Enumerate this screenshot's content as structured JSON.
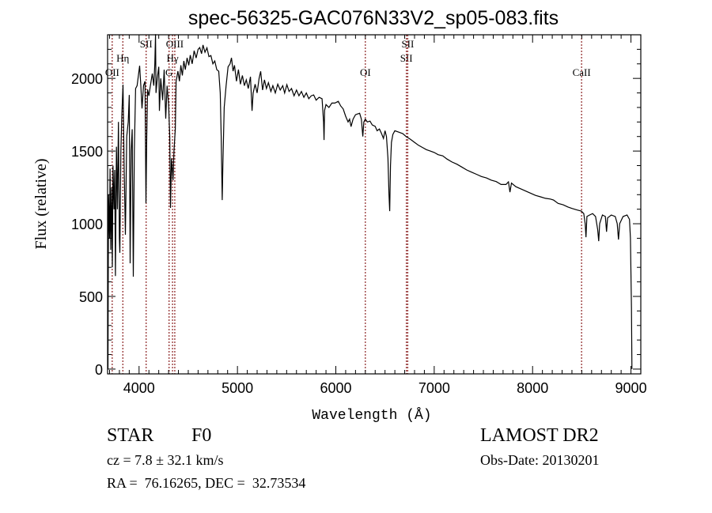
{
  "chart_data": {
    "type": "line",
    "title": "spec-56325-GAC076N33V2_sp05-083.fits",
    "xlabel": "Wavelength (Å)",
    "ylabel": "Flux (relative)",
    "xlim": [
      3680,
      9100
    ],
    "ylim": [
      -33,
      2300
    ],
    "xticks": [
      4000,
      5000,
      6000,
      7000,
      8000,
      9000
    ],
    "yticks": [
      0,
      500,
      1000,
      1500,
      2000
    ],
    "grid": false,
    "line_color": "#000000",
    "marker_color": "#8b2020",
    "lines": [
      {
        "label": "OII",
        "wavelength": 3727
      },
      {
        "label": "Hη",
        "wavelength": 3835
      },
      {
        "label": "SII",
        "wavelength": 4072
      },
      {
        "label": "G",
        "wavelength": 4305
      },
      {
        "label": "Hγ",
        "wavelength": 4340
      },
      {
        "label": "OIII",
        "wavelength": 4363
      },
      {
        "label": "OI",
        "wavelength": 6300
      },
      {
        "label": "SII",
        "wavelength": 6717
      },
      {
        "label": "SII",
        "wavelength": 6731
      },
      {
        "label": "CaII",
        "wavelength": 8498
      }
    ],
    "series": [
      {
        "name": "flux",
        "points": [
          [
            3684,
            0
          ],
          [
            3686,
            380
          ],
          [
            3690,
            1200
          ],
          [
            3700,
            900
          ],
          [
            3705,
            1380
          ],
          [
            3712,
            820
          ],
          [
            3720,
            1250
          ],
          [
            3728,
            700
          ],
          [
            3735,
            1400
          ],
          [
            3745,
            1100
          ],
          [
            3752,
            1370
          ],
          [
            3760,
            640
          ],
          [
            3770,
            1530
          ],
          [
            3780,
            1100
          ],
          [
            3790,
            1700
          ],
          [
            3800,
            900
          ],
          [
            3805,
            800
          ],
          [
            3815,
            1500
          ],
          [
            3825,
            1750
          ],
          [
            3837,
            1957
          ],
          [
            3848,
            1400
          ],
          [
            3861,
            924
          ],
          [
            3875,
            1600
          ],
          [
            3890,
            1700
          ],
          [
            3900,
            1886
          ],
          [
            3909,
            728
          ],
          [
            3920,
            1500
          ],
          [
            3930,
            1650
          ],
          [
            3941,
            636
          ],
          [
            3952,
            1500
          ],
          [
            3965,
            1930
          ],
          [
            3980,
            1950
          ],
          [
            4006,
            2087
          ],
          [
            4018,
            1950
          ],
          [
            4030,
            1793
          ],
          [
            4045,
            1950
          ],
          [
            4060,
            1980
          ],
          [
            4070,
            1141
          ],
          [
            4078,
            1600
          ],
          [
            4086,
            1924
          ],
          [
            4100,
            1880
          ],
          [
            4115,
            1950
          ],
          [
            4134,
            2033
          ],
          [
            4150,
            1950
          ],
          [
            4160,
            2100
          ],
          [
            4167,
            2304
          ],
          [
            4172,
            1900
          ],
          [
            4185,
            2000
          ],
          [
            4200,
            2080
          ],
          [
            4207,
            1777
          ],
          [
            4220,
            2000
          ],
          [
            4240,
            1850
          ],
          [
            4255,
            2060
          ],
          [
            4271,
            1723
          ],
          [
            4285,
            1950
          ],
          [
            4300,
            1820
          ],
          [
            4312,
            1600
          ],
          [
            4319,
            1109
          ],
          [
            4330,
            1450
          ],
          [
            4345,
            1300
          ],
          [
            4355,
            1500
          ],
          [
            4368,
            1652
          ],
          [
            4376,
            1978
          ],
          [
            4395,
            2050
          ],
          [
            4410,
            1980
          ],
          [
            4425,
            2090
          ],
          [
            4440,
            2020
          ],
          [
            4455,
            2120
          ],
          [
            4470,
            2060
          ],
          [
            4488,
            2141
          ],
          [
            4505,
            2090
          ],
          [
            4520,
            2160
          ],
          [
            4540,
            2100
          ],
          [
            4560,
            2190
          ],
          [
            4580,
            2140
          ],
          [
            4600,
            2200
          ],
          [
            4617,
            2212
          ],
          [
            4635,
            2170
          ],
          [
            4650,
            2230
          ],
          [
            4670,
            2180
          ],
          [
            4690,
            2210
          ],
          [
            4710,
            2150
          ],
          [
            4730,
            2157
          ],
          [
            4750,
            2100
          ],
          [
            4770,
            2120
          ],
          [
            4790,
            2060
          ],
          [
            4810,
            2049
          ],
          [
            4825,
            1900
          ],
          [
            4835,
            1600
          ],
          [
            4845,
            1163
          ],
          [
            4852,
            1400
          ],
          [
            4865,
            1800
          ],
          [
            4885,
            1950
          ],
          [
            4905,
            2080
          ],
          [
            4925,
            2100
          ],
          [
            4939,
            2141
          ],
          [
            4955,
            2050
          ],
          [
            4970,
            2090
          ],
          [
            4990,
            1980
          ],
          [
            5010,
            2060
          ],
          [
            5030,
            1960
          ],
          [
            5050,
            2020
          ],
          [
            5070,
            1950
          ],
          [
            5090,
            1990
          ],
          [
            5110,
            1930
          ],
          [
            5132,
            2011
          ],
          [
            5148,
            1777
          ],
          [
            5160,
            1900
          ],
          [
            5180,
            1960
          ],
          [
            5200,
            1900
          ],
          [
            5220,
            2000
          ],
          [
            5236,
            2049
          ],
          [
            5255,
            1920
          ],
          [
            5275,
            1990
          ],
          [
            5295,
            1930
          ],
          [
            5315,
            1970
          ],
          [
            5340,
            1910
          ],
          [
            5360,
            1950
          ],
          [
            5385,
            1900
          ],
          [
            5410,
            1960
          ],
          [
            5435,
            1920
          ],
          [
            5460,
            1950
          ],
          [
            5480,
            1900
          ],
          [
            5502,
            1957
          ],
          [
            5525,
            1910
          ],
          [
            5550,
            1930
          ],
          [
            5575,
            1880
          ],
          [
            5600,
            1920
          ],
          [
            5625,
            1880
          ],
          [
            5650,
            1910
          ],
          [
            5675,
            1870
          ],
          [
            5700,
            1900
          ],
          [
            5725,
            1860
          ],
          [
            5750,
            1880
          ],
          [
            5775,
            1886
          ],
          [
            5800,
            1850
          ],
          [
            5830,
            1870
          ],
          [
            5860,
            1860
          ],
          [
            5875,
            1700
          ],
          [
            5880,
            1576
          ],
          [
            5886,
            1780
          ],
          [
            5900,
            1820
          ],
          [
            5930,
            1800
          ],
          [
            5960,
            1830
          ],
          [
            5990,
            1830
          ],
          [
            6025,
            1842
          ],
          [
            6050,
            1810
          ],
          [
            6075,
            1790
          ],
          [
            6100,
            1740
          ],
          [
            6125,
            1700
          ],
          [
            6140,
            1720
          ],
          [
            6154,
            1668
          ],
          [
            6175,
            1720
          ],
          [
            6200,
            1750
          ],
          [
            6220,
            1755
          ],
          [
            6242,
            1760
          ],
          [
            6260,
            1720
          ],
          [
            6274,
            1600
          ],
          [
            6285,
            1700
          ],
          [
            6300,
            1720
          ],
          [
            6320,
            1700
          ],
          [
            6347,
            1706
          ],
          [
            6370,
            1680
          ],
          [
            6400,
            1670
          ],
          [
            6420,
            1640
          ],
          [
            6443,
            1652
          ],
          [
            6465,
            1620
          ],
          [
            6484,
            1587
          ],
          [
            6500,
            1640
          ],
          [
            6515,
            1600
          ],
          [
            6530,
            1450
          ],
          [
            6540,
            1200
          ],
          [
            6548,
            1087
          ],
          [
            6556,
            1400
          ],
          [
            6565,
            1560
          ],
          [
            6580,
            1614
          ],
          [
            6600,
            1640
          ],
          [
            6640,
            1630
          ],
          [
            6680,
            1620
          ],
          [
            6709,
            1603
          ],
          [
            6760,
            1580
          ],
          [
            6800,
            1560
          ],
          [
            6840,
            1540
          ],
          [
            6880,
            1525
          ],
          [
            6920,
            1510
          ],
          [
            6960,
            1500
          ],
          [
            7000,
            1490
          ],
          [
            7040,
            1475
          ],
          [
            7087,
            1467
          ],
          [
            7130,
            1445
          ],
          [
            7180,
            1425
          ],
          [
            7230,
            1410
          ],
          [
            7280,
            1390
          ],
          [
            7330,
            1370
          ],
          [
            7380,
            1355
          ],
          [
            7430,
            1340
          ],
          [
            7480,
            1325
          ],
          [
            7530,
            1315
          ],
          [
            7580,
            1300
          ],
          [
            7630,
            1290
          ],
          [
            7680,
            1270
          ],
          [
            7730,
            1270
          ],
          [
            7755,
            1288
          ],
          [
            7770,
            1217
          ],
          [
            7785,
            1280
          ],
          [
            7830,
            1255
          ],
          [
            7880,
            1240
          ],
          [
            7930,
            1225
          ],
          [
            7980,
            1210
          ],
          [
            8030,
            1195
          ],
          [
            8080,
            1185
          ],
          [
            8130,
            1175
          ],
          [
            8180,
            1170
          ],
          [
            8213,
            1163
          ],
          [
            8260,
            1140
          ],
          [
            8310,
            1130
          ],
          [
            8360,
            1115
          ],
          [
            8400,
            1105
          ],
          [
            8450,
            1095
          ],
          [
            8495,
            1087
          ],
          [
            8520,
            1070
          ],
          [
            8535,
            1000
          ],
          [
            8543,
            907
          ],
          [
            8552,
            1050
          ],
          [
            8580,
            1060
          ],
          [
            8610,
            1070
          ],
          [
            8640,
            1050
          ],
          [
            8662,
            960
          ],
          [
            8672,
            880
          ],
          [
            8682,
            1000
          ],
          [
            8710,
            1060
          ],
          [
            8740,
            1050
          ],
          [
            8752,
            945
          ],
          [
            8762,
            1040
          ],
          [
            8800,
            1060
          ],
          [
            8840,
            1050
          ],
          [
            8860,
            1000
          ],
          [
            8873,
            891
          ],
          [
            8885,
            1000
          ],
          [
            8920,
            1050
          ],
          [
            8960,
            1060
          ],
          [
            8985,
            1030
          ],
          [
            8995,
            900
          ],
          [
            9005,
            420
          ],
          [
            9010,
            0
          ]
        ]
      }
    ]
  },
  "info": {
    "object_class": "STAR",
    "subclass": "F0",
    "survey": "LAMOST DR2",
    "cz": "cz = 7.8 ± 32.1 km/s",
    "obs_date": "Obs-Date: 20130201",
    "coords": "RA =  76.16265, DEC =  32.73534"
  }
}
